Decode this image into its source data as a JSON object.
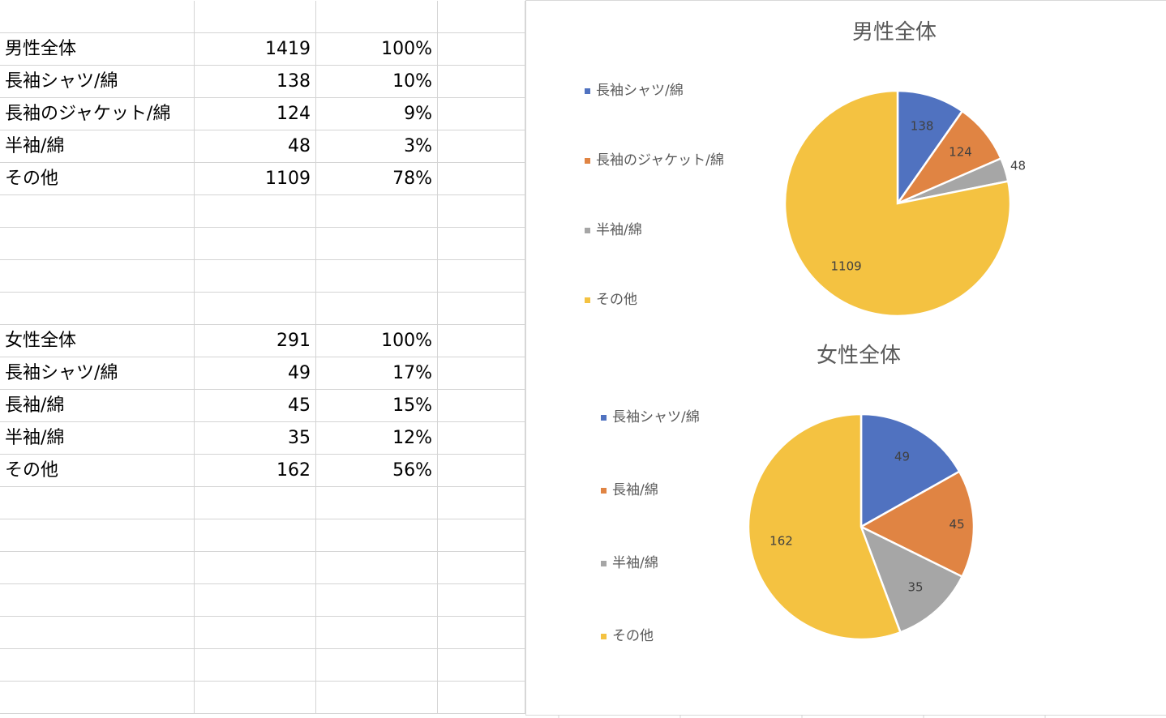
{
  "table_men": {
    "rows": [
      {
        "label": "男性全体",
        "count": "1419",
        "pct": "100%"
      },
      {
        "label": "長袖シャツ/綿",
        "count": "138",
        "pct": "10%"
      },
      {
        "label": "長袖のジャケット/綿",
        "count": "124",
        "pct": "9%"
      },
      {
        "label": "半袖/綿",
        "count": "48",
        "pct": "3%"
      },
      {
        "label": "その他",
        "count": "1109",
        "pct": "78%"
      }
    ]
  },
  "table_women": {
    "rows": [
      {
        "label": "女性全体",
        "count": "291",
        "pct": "100%"
      },
      {
        "label": "長袖シャツ/綿",
        "count": "49",
        "pct": "17%"
      },
      {
        "label": "長袖/綿",
        "count": "45",
        "pct": "15%"
      },
      {
        "label": "半袖/綿",
        "count": "35",
        "pct": "12%"
      },
      {
        "label": "その他",
        "count": "162",
        "pct": "56%"
      }
    ]
  },
  "colors": {
    "blue": "#4472C4",
    "orange": "#ED7D31",
    "gray": "#A5A5A5",
    "yellow": "#FFC000",
    "pie_blue": "#5072C0",
    "pie_orange": "#E08443",
    "pie_gray": "#A6A6A6",
    "pie_yellow": "#F4C241"
  },
  "chart_data": [
    {
      "type": "pie",
      "title": "男性全体",
      "categories": [
        "長袖シャツ/綿",
        "長袖のジャケット/綿",
        "半袖/綿",
        "その他"
      ],
      "values": [
        138,
        124,
        48,
        1109
      ],
      "data_labels": [
        "138",
        "124",
        "48",
        "1109"
      ],
      "legend": "left"
    },
    {
      "type": "pie",
      "title": "女性全体",
      "categories": [
        "長袖シャツ/綿",
        "長袖/綿",
        "半袖/綿",
        "その他"
      ],
      "values": [
        49,
        45,
        35,
        162
      ],
      "data_labels": [
        "49",
        "45",
        "35",
        "162"
      ],
      "legend": "left"
    }
  ]
}
